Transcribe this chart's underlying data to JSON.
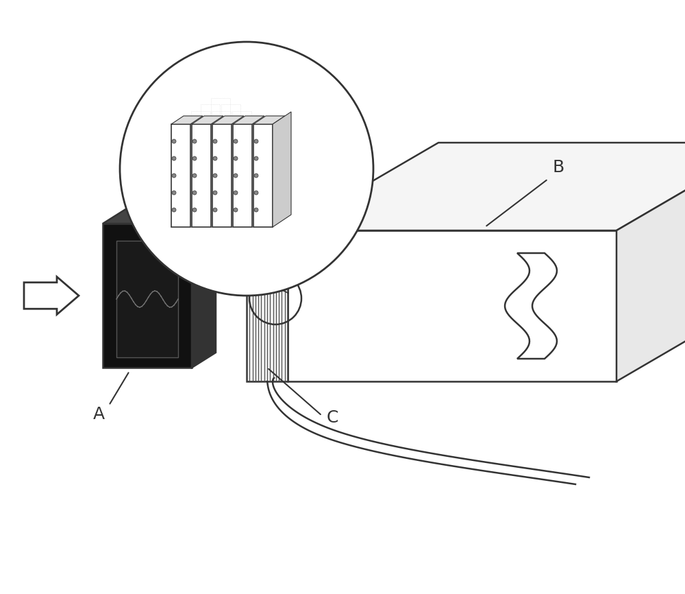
{
  "title": "",
  "bg_color": "#ffffff",
  "line_color": "#333333",
  "light_gray": "#aaaaaa",
  "very_light_gray": "#dddddd",
  "dark": "#111111",
  "label_A": "A",
  "label_B": "B",
  "label_C": "C",
  "label_fontsize": 18,
  "arrow_color": "#ffffff",
  "arrow_edge": "#333333"
}
